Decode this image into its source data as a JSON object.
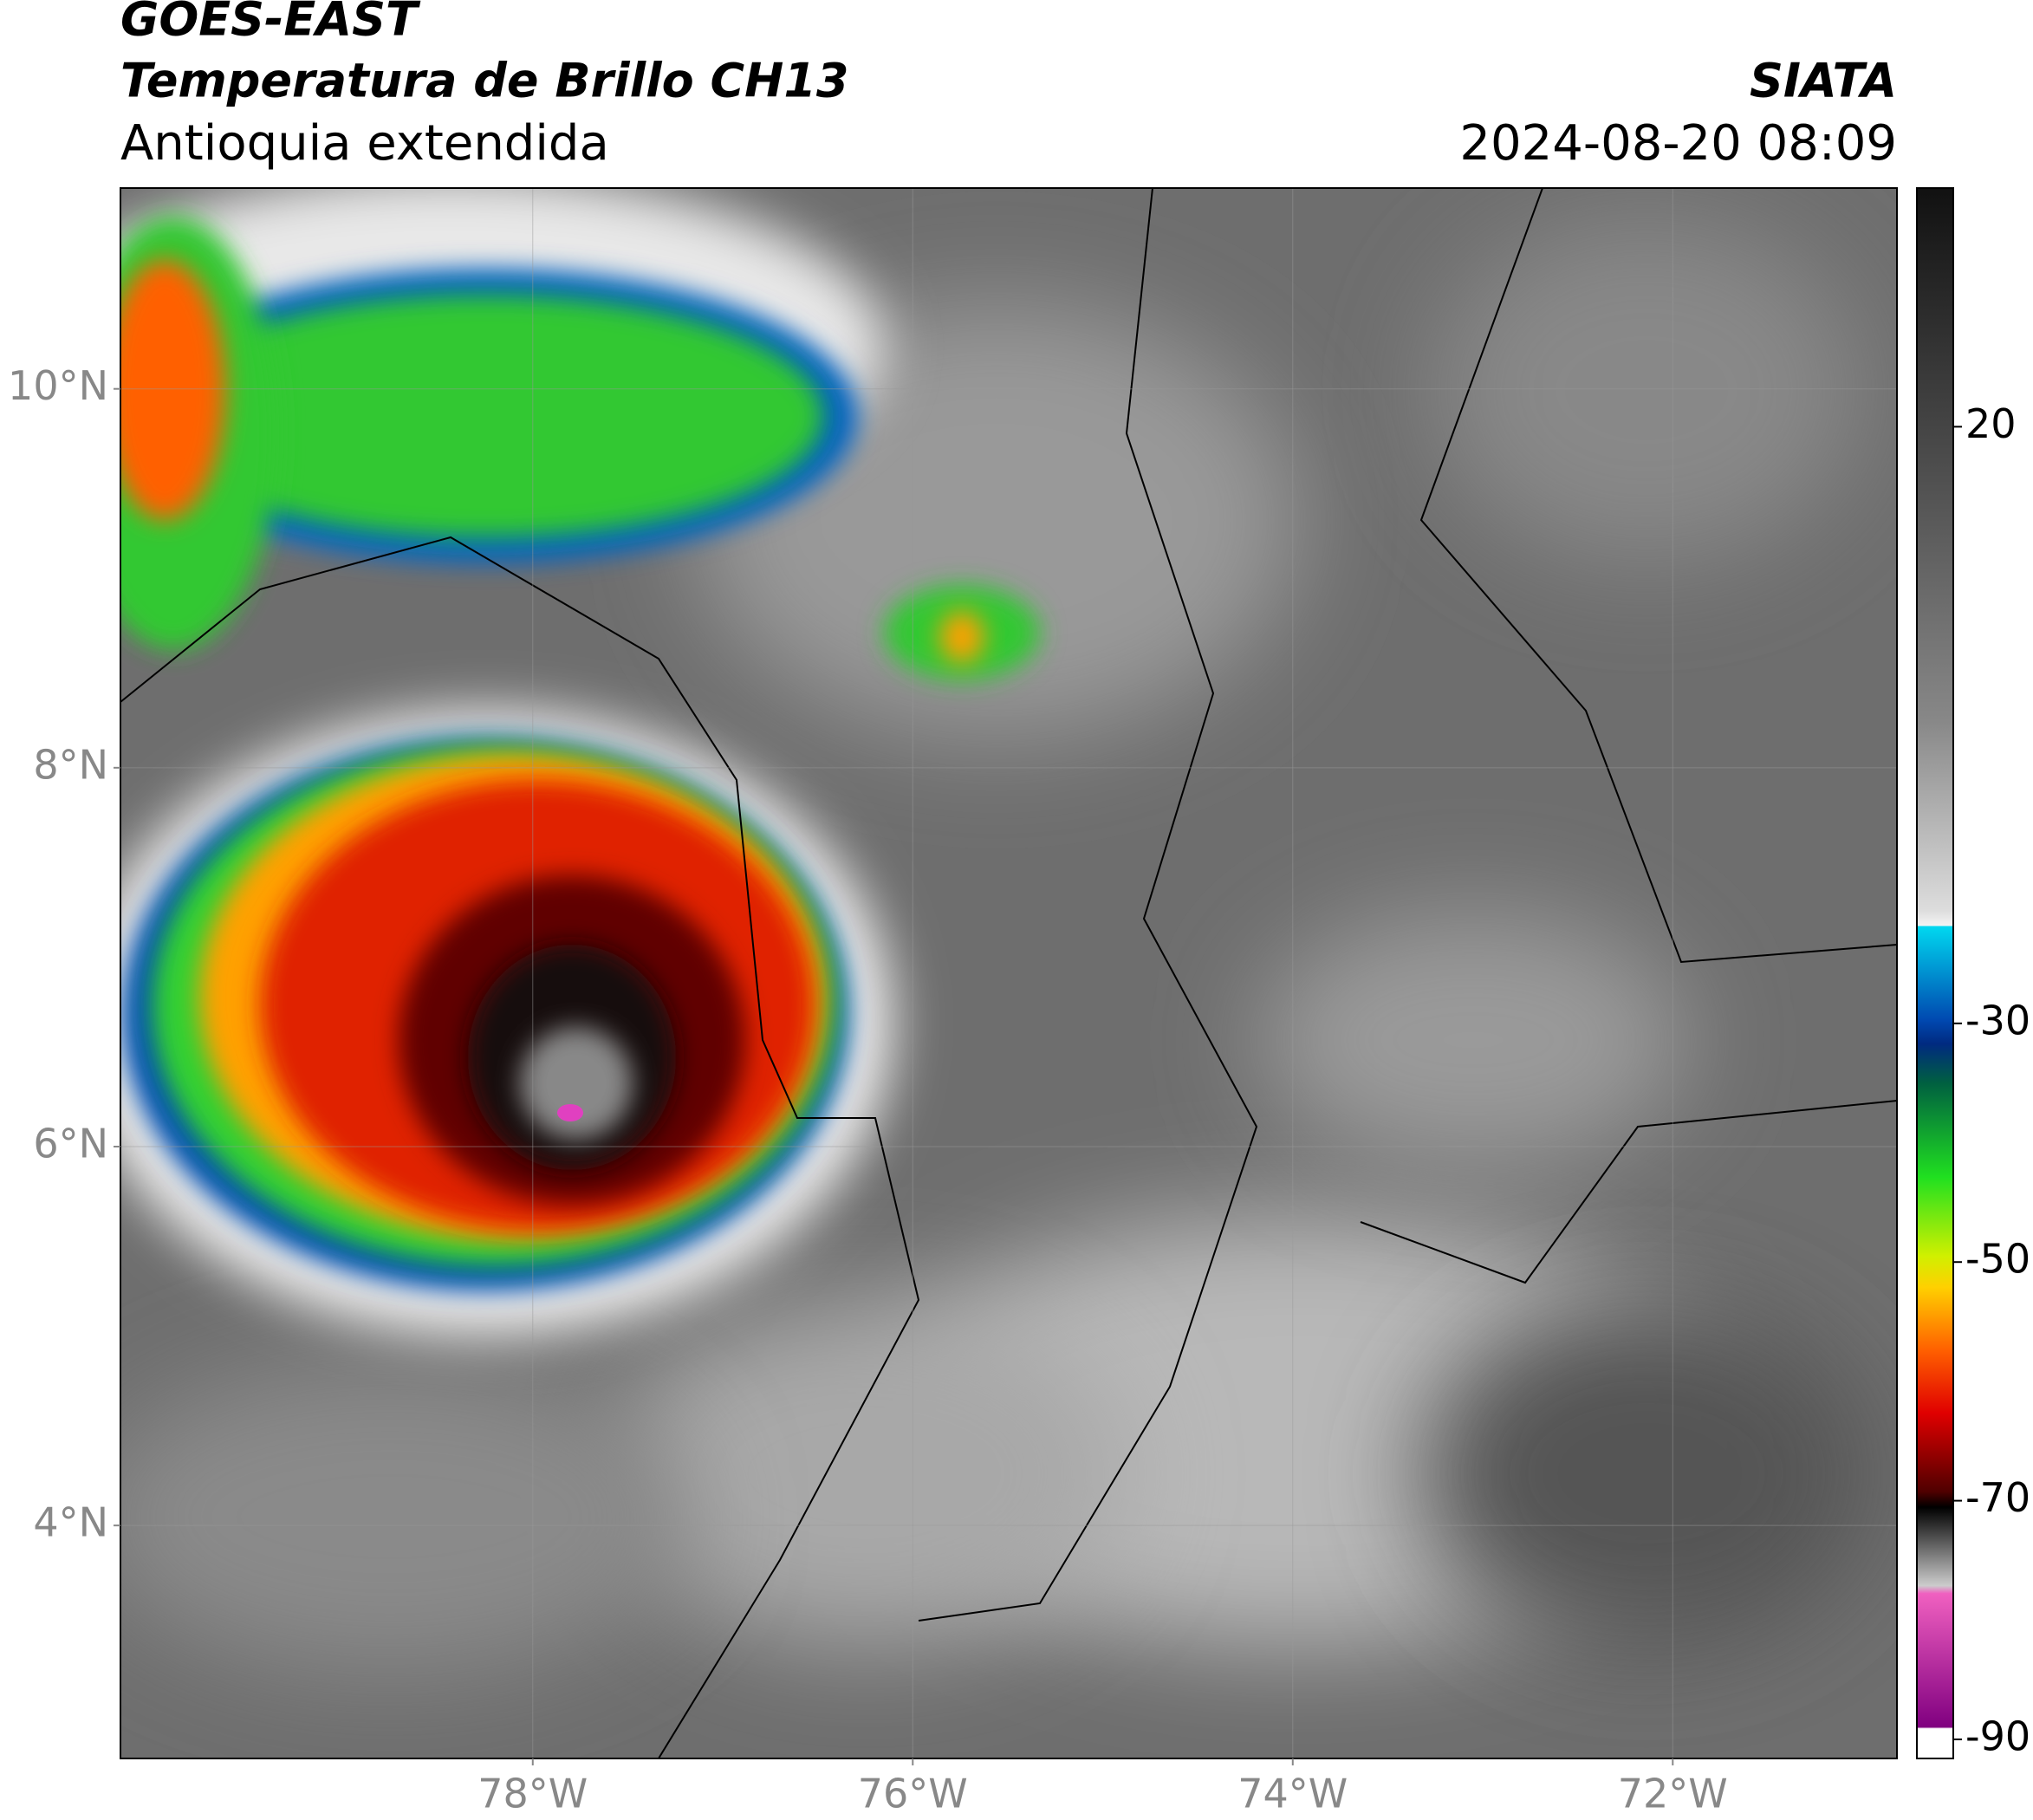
{
  "header": {
    "title": "GOES-EAST",
    "subtitle": "Temperatura de Brillo CH13",
    "region": "Antioquia extendida",
    "source": "SIATA",
    "datetime": "2024-08-20 08:09"
  },
  "map": {
    "xlim": [
      -80.17,
      -70.82
    ],
    "ylim": [
      2.77,
      11.06
    ],
    "xticks": [
      {
        "value": -78,
        "label": "78°W"
      },
      {
        "value": -76,
        "label": "76°W"
      },
      {
        "value": -74,
        "label": "74°W"
      },
      {
        "value": -72,
        "label": "72°W"
      }
    ],
    "yticks": [
      {
        "value": 4,
        "label": "4°N"
      },
      {
        "value": 6,
        "label": "6°N"
      },
      {
        "value": 8,
        "label": "8°N"
      },
      {
        "value": 10,
        "label": "10°N"
      }
    ]
  },
  "colorbar": {
    "lim": [
      -91.6,
      40
    ],
    "ticks": [
      20,
      -30,
      -50,
      -70,
      -90
    ]
  }
}
